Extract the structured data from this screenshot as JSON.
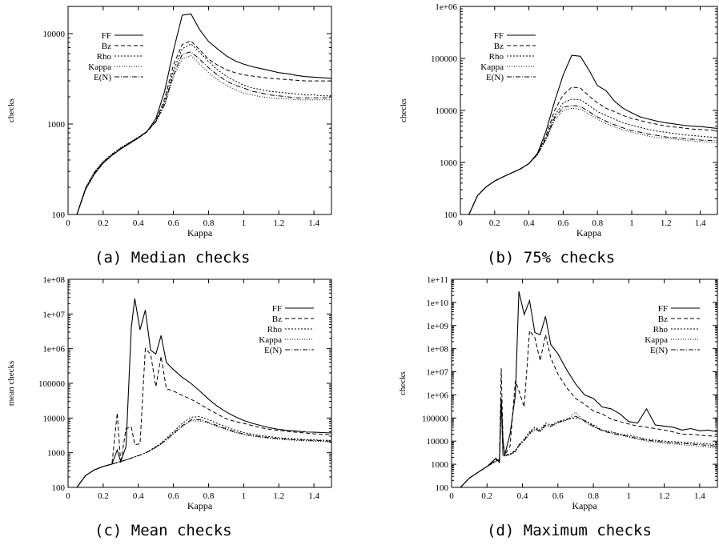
{
  "captions": {
    "a": "(a) Median checks",
    "b": "(b) 75% checks",
    "c": "(c) Mean checks",
    "d": "(d) Maximum checks"
  },
  "chart_data": [
    {
      "id": "a",
      "type": "line",
      "title": "",
      "xlabel": "Kappa",
      "ylabel": "checks",
      "xlim": [
        0,
        1.5
      ],
      "ylim": [
        100,
        20000
      ],
      "yscale": "log",
      "xticks": [
        "0",
        "0.2",
        "0.4",
        "0.6",
        "0.8",
        "1",
        "1.2",
        "1.4"
      ],
      "yticks": [
        "100",
        "1000",
        "10000"
      ],
      "ytick_values": [
        100,
        1000,
        10000
      ],
      "legend_position": "top-left",
      "x": [
        0.05,
        0.1,
        0.15,
        0.2,
        0.25,
        0.3,
        0.35,
        0.4,
        0.45,
        0.5,
        0.55,
        0.6,
        0.65,
        0.7,
        0.75,
        0.8,
        0.85,
        0.9,
        0.95,
        1.0,
        1.05,
        1.1,
        1.15,
        1.2,
        1.25,
        1.3,
        1.35,
        1.4,
        1.45,
        1.5
      ],
      "series": [
        {
          "name": "FF",
          "values": [
            100,
            190,
            280,
            370,
            450,
            530,
            610,
            700,
            830,
            1150,
            2300,
            6500,
            16000,
            16500,
            11000,
            8200,
            6800,
            5700,
            5000,
            4600,
            4300,
            4100,
            3900,
            3700,
            3600,
            3450,
            3350,
            3300,
            3250,
            3200
          ]
        },
        {
          "name": "Bz",
          "values": [
            100,
            190,
            280,
            370,
            450,
            530,
            610,
            700,
            820,
            1080,
            1900,
            4500,
            7600,
            8300,
            6600,
            5200,
            4500,
            4000,
            3700,
            3500,
            3400,
            3300,
            3200,
            3150,
            3100,
            3050,
            3000,
            3000,
            3000,
            3000
          ]
        },
        {
          "name": "Rho",
          "values": [
            100,
            195,
            290,
            380,
            460,
            540,
            620,
            710,
            830,
            1070,
            1750,
            3900,
            6800,
            7700,
            6200,
            4900,
            4000,
            3400,
            3000,
            2700,
            2500,
            2400,
            2300,
            2250,
            2200,
            2150,
            2100,
            2100,
            2050,
            2050
          ]
        },
        {
          "name": "Kappa",
          "values": [
            100,
            200,
            300,
            390,
            470,
            550,
            630,
            720,
            830,
            1050,
            1600,
            3300,
            5300,
            5700,
            4600,
            3700,
            3100,
            2700,
            2400,
            2200,
            2100,
            2000,
            1950,
            1900,
            1900,
            1850,
            1850,
            1850,
            1850,
            1850
          ]
        },
        {
          "name": "E(N)",
          "values": [
            100,
            195,
            290,
            380,
            460,
            540,
            620,
            710,
            830,
            1060,
            1650,
            3500,
            5900,
            6300,
            5200,
            4200,
            3500,
            3000,
            2700,
            2500,
            2300,
            2200,
            2100,
            2050,
            2000,
            1950,
            1950,
            1950,
            1950,
            1950
          ]
        }
      ]
    },
    {
      "id": "b",
      "type": "line",
      "title": "",
      "xlabel": "Kappa",
      "ylabel": "checks",
      "xlim": [
        0,
        1.5
      ],
      "ylim": [
        100,
        1000000
      ],
      "yscale": "log",
      "xticks": [
        "0",
        "0.2",
        "0.4",
        "0.6",
        "0.8",
        "1",
        "1.2",
        "1.4"
      ],
      "yticks": [
        "100",
        "1000",
        "10000",
        "100000",
        "1e+06"
      ],
      "ytick_values": [
        100,
        1000,
        10000,
        100000,
        1000000
      ],
      "legend_position": "top-left",
      "x": [
        0.05,
        0.1,
        0.15,
        0.2,
        0.25,
        0.3,
        0.35,
        0.4,
        0.45,
        0.5,
        0.55,
        0.6,
        0.65,
        0.7,
        0.75,
        0.8,
        0.85,
        0.9,
        0.95,
        1.0,
        1.05,
        1.1,
        1.15,
        1.2,
        1.25,
        1.3,
        1.35,
        1.4,
        1.45,
        1.5
      ],
      "series": [
        {
          "name": "FF",
          "values": [
            100,
            230,
            340,
            440,
            530,
            630,
            750,
            950,
            1500,
            4000,
            15000,
            48000,
            115000,
            110000,
            60000,
            30000,
            24000,
            15000,
            11000,
            9000,
            7500,
            6800,
            6200,
            5800,
            5500,
            5200,
            5000,
            4900,
            4700,
            4500
          ]
        },
        {
          "name": "Bz",
          "values": [
            100,
            230,
            340,
            440,
            530,
            630,
            750,
            950,
            1450,
            3300,
            10000,
            20000,
            28000,
            27000,
            19000,
            14000,
            11000,
            9500,
            8000,
            7000,
            6400,
            5800,
            5400,
            5000,
            4800,
            4600,
            4400,
            4300,
            4200,
            4100
          ]
        },
        {
          "name": "Rho",
          "values": [
            100,
            230,
            340,
            440,
            530,
            630,
            750,
            950,
            1450,
            3000,
            8000,
            14000,
            16500,
            16000,
            12500,
            9500,
            8000,
            6800,
            5800,
            5200,
            4700,
            4300,
            4000,
            3800,
            3600,
            3400,
            3300,
            3200,
            3100,
            3000
          ]
        },
        {
          "name": "Kappa",
          "values": [
            100,
            230,
            340,
            440,
            530,
            630,
            750,
            950,
            1400,
            2700,
            6500,
            10000,
            11000,
            10500,
            8500,
            6800,
            5600,
            4800,
            4200,
            3800,
            3500,
            3200,
            3000,
            2900,
            2800,
            2700,
            2600,
            2500,
            2450,
            2400
          ]
        },
        {
          "name": "E(N)",
          "values": [
            100,
            230,
            340,
            440,
            530,
            630,
            750,
            950,
            1420,
            2850,
            7200,
            11500,
            12500,
            12000,
            9500,
            7500,
            6200,
            5300,
            4600,
            4100,
            3800,
            3500,
            3300,
            3100,
            3000,
            2900,
            2800,
            2700,
            2650,
            2600
          ]
        }
      ]
    },
    {
      "id": "c",
      "type": "line",
      "title": "",
      "xlabel": "Kappa",
      "ylabel": "mean checks",
      "xlim": [
        0,
        1.5
      ],
      "ylim": [
        100,
        100000000
      ],
      "yscale": "log",
      "xticks": [
        "0",
        "0.2",
        "0.4",
        "0.6",
        "0.8",
        "1",
        "1.2",
        "1.4"
      ],
      "yticks": [
        "100",
        "1000",
        "10000",
        "100000",
        "1e+06",
        "1e+07",
        "1e+08"
      ],
      "ytick_values": [
        100,
        1000,
        10000,
        100000,
        1000000,
        10000000,
        100000000
      ],
      "legend_position": "top-right",
      "x": [
        0.05,
        0.1,
        0.15,
        0.2,
        0.25,
        0.28,
        0.3,
        0.33,
        0.36,
        0.38,
        0.41,
        0.44,
        0.47,
        0.5,
        0.53,
        0.56,
        0.6,
        0.65,
        0.7,
        0.75,
        0.8,
        0.85,
        0.9,
        0.95,
        1.0,
        1.05,
        1.1,
        1.15,
        1.2,
        1.25,
        1.3,
        1.35,
        1.4,
        1.45,
        1.5
      ],
      "series": [
        {
          "name": "FF",
          "values": [
            100,
            220,
            320,
            400,
            470,
            1200,
            550,
            1500,
            4000000,
            28000000,
            3500000,
            13000000,
            900000,
            700000,
            2400000,
            400000,
            250000,
            150000,
            100000,
            60000,
            35000,
            22000,
            15000,
            11000,
            8500,
            7000,
            6000,
            5200,
            4700,
            4400,
            4200,
            4000,
            3900,
            3800,
            3700
          ]
        },
        {
          "name": "Bz",
          "values": [
            100,
            220,
            320,
            400,
            470,
            14000,
            500,
            5000,
            5500,
            1700,
            1800,
            1000000,
            700000,
            80000,
            600000,
            70000,
            60000,
            45000,
            35000,
            25000,
            18000,
            13000,
            9500,
            8000,
            7000,
            6000,
            5200,
            4700,
            4400,
            4100,
            3900,
            3700,
            3500,
            3400,
            3300
          ]
        },
        {
          "name": "Rho",
          "values": [
            100,
            220,
            320,
            400,
            470,
            520,
            560,
            620,
            700,
            760,
            850,
            980,
            1200,
            1500,
            1900,
            2600,
            4000,
            7000,
            10500,
            11000,
            9000,
            7000,
            5500,
            4500,
            3800,
            3400,
            3100,
            2900,
            2700,
            2600,
            2500,
            2400,
            2350,
            2300,
            2250
          ]
        },
        {
          "name": "Kappa",
          "values": [
            100,
            220,
            320,
            400,
            470,
            520,
            560,
            620,
            700,
            760,
            850,
            970,
            1150,
            1400,
            1750,
            2300,
            3400,
            5600,
            8200,
            8300,
            7000,
            5600,
            4600,
            3800,
            3300,
            3000,
            2800,
            2600,
            2450,
            2350,
            2250,
            2200,
            2150,
            2100,
            2050
          ]
        },
        {
          "name": "E(N)",
          "values": [
            100,
            220,
            320,
            400,
            470,
            520,
            560,
            620,
            700,
            760,
            850,
            975,
            1170,
            1450,
            1800,
            2400,
            3600,
            6000,
            8800,
            9000,
            7500,
            6000,
            4900,
            4000,
            3500,
            3100,
            2900,
            2700,
            2550,
            2450,
            2350,
            2300,
            2250,
            2200,
            2150
          ]
        }
      ]
    },
    {
      "id": "d",
      "type": "line",
      "title": "",
      "xlabel": "Kappa",
      "ylabel": "checks",
      "xlim": [
        0,
        1.5
      ],
      "ylim": [
        100,
        100000000000
      ],
      "yscale": "log",
      "xticks": [
        "0",
        "0.2",
        "0.4",
        "0.6",
        "0.8",
        "1",
        "1.2",
        "1.4"
      ],
      "yticks": [
        "100",
        "1000",
        "10000",
        "100000",
        "1e+06",
        "1e+07",
        "1e+08",
        "1e+09",
        "1e+10",
        "1e+11"
      ],
      "ytick_values": [
        100,
        1000,
        10000,
        100000,
        1000000,
        10000000,
        100000000,
        1000000000,
        10000000000,
        100000000000
      ],
      "legend_position": "top-right",
      "x": [
        0.05,
        0.1,
        0.15,
        0.2,
        0.25,
        0.27,
        0.28,
        0.29,
        0.3,
        0.33,
        0.36,
        0.38,
        0.41,
        0.44,
        0.47,
        0.5,
        0.53,
        0.56,
        0.6,
        0.65,
        0.7,
        0.75,
        0.8,
        0.85,
        0.9,
        0.95,
        1.0,
        1.05,
        1.1,
        1.15,
        1.2,
        1.25,
        1.3,
        1.35,
        1.4,
        1.45,
        1.5
      ],
      "series": [
        {
          "name": "FF",
          "values": [
            100,
            250,
            450,
            800,
            1800,
            1200,
            700000,
            10000,
            2500,
            20000,
            1000000,
            30000000000,
            3000000000,
            12000000000,
            500000000,
            400000000,
            2500000000,
            150000000,
            60000000,
            12000000,
            3000000,
            1000000,
            700000,
            300000,
            250000,
            150000,
            70000,
            60000,
            250000,
            50000,
            45000,
            40000,
            30000,
            35000,
            28000,
            30000,
            25000
          ]
        },
        {
          "name": "Bz",
          "values": [
            100,
            250,
            450,
            800,
            1600,
            1400,
            14000000,
            12000,
            2500,
            6000,
            4000000,
            1500000,
            300000,
            600000000,
            300000000,
            30000000,
            400000000,
            40000000,
            8000000,
            2000000,
            700000,
            400000,
            200000,
            150000,
            90000,
            70000,
            55000,
            45000,
            40000,
            35000,
            30000,
            25000,
            20000,
            20000,
            18000,
            17000,
            16000
          ]
        },
        {
          "name": "Rho",
          "values": [
            100,
            250,
            450,
            800,
            1400,
            1700,
            700000,
            2500,
            2600,
            2800,
            4000,
            7000,
            12000,
            25000,
            40000,
            30000,
            60000,
            50000,
            70000,
            90000,
            100000,
            80000,
            50000,
            30000,
            25000,
            20000,
            18000,
            15000,
            12000,
            11000,
            10000,
            9500,
            9000,
            8500,
            8000,
            7500,
            7000
          ]
        },
        {
          "name": "Kappa",
          "values": [
            100,
            250,
            450,
            800,
            1300,
            1600,
            700000,
            2200,
            2300,
            2500,
            3500,
            6000,
            10000,
            20000,
            30000,
            25000,
            45000,
            40000,
            60000,
            80000,
            180000,
            70000,
            40000,
            30000,
            25000,
            20000,
            15000,
            12000,
            10000,
            9000,
            8000,
            7500,
            7000,
            6500,
            6000,
            5500,
            5000
          ]
        },
        {
          "name": "E(N)",
          "values": [
            100,
            250,
            450,
            800,
            1350,
            1650,
            700000,
            2300,
            2400,
            2600,
            3700,
            6500,
            11000,
            22000,
            35000,
            27000,
            50000,
            45000,
            65000,
            85000,
            120000,
            75000,
            45000,
            28000,
            22000,
            18000,
            16000,
            13000,
            11000,
            10000,
            9000,
            8500,
            8000,
            7500,
            7000,
            6500,
            6000
          ]
        }
      ]
    }
  ]
}
